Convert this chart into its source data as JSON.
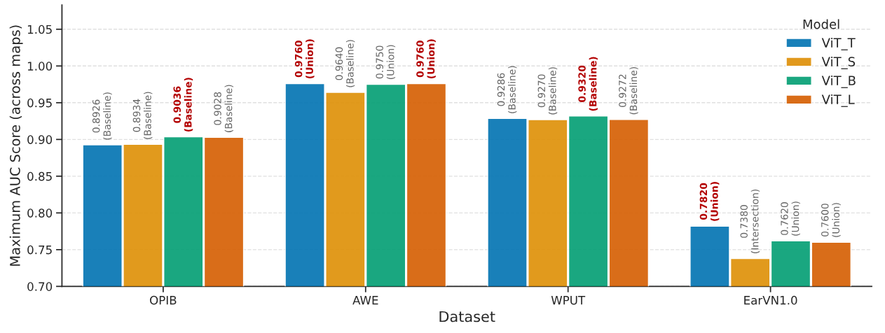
{
  "chart_data": {
    "type": "bar",
    "xlabel": "Dataset",
    "ylabel": "Maximum AUC Score (across maps)",
    "legend_title": "Model",
    "categories": [
      "OPIB",
      "AWE",
      "WPUT",
      "EarVN1.0"
    ],
    "series": [
      {
        "name": "ViT_T",
        "color": "#0173b2",
        "values": [
          0.8926,
          0.976,
          0.9286,
          0.782
        ],
        "value_labels": [
          "0.8926\n(Baseline)",
          "0.9760\n(Union)",
          "0.9286\n(Baseline)",
          "0.7820\n(Union)"
        ]
      },
      {
        "name": "ViT_S",
        "color": "#de8f05",
        "values": [
          0.8934,
          0.964,
          0.927,
          0.738
        ],
        "value_labels": [
          "0.8934\n(Baseline)",
          "0.9640\n(Baseline)",
          "0.9270\n(Baseline)",
          "0.7380\n(Intersection)"
        ]
      },
      {
        "name": "ViT_B",
        "color": "#029e73",
        "values": [
          0.9036,
          0.975,
          0.932,
          0.762
        ],
        "value_labels": [
          "0.9036\n(Baseline)",
          "0.9750\n(Union)",
          "0.9320\n(Baseline)",
          "0.7620\n(Union)"
        ]
      },
      {
        "name": "ViT_L",
        "color": "#d55e00",
        "values": [
          0.9028,
          0.976,
          0.9272,
          0.76
        ],
        "value_labels": [
          "0.9028\n(Baseline)",
          "0.9760\n(Union)",
          "0.9272\n(Baseline)",
          "0.7600\n(Union)"
        ]
      }
    ],
    "ylim": [
      0.7,
      1.083
    ],
    "yticks": [
      {
        "value": 0.7,
        "label": "0.70"
      },
      0.75,
      {
        "value": 0.8,
        "label": "0.80"
      },
      0.85,
      {
        "value": 0.9,
        "label": "0.90"
      },
      0.95,
      {
        "value": 1.0,
        "label": "1.00"
      },
      1.05
    ],
    "grid": "y",
    "legend": "top right"
  }
}
